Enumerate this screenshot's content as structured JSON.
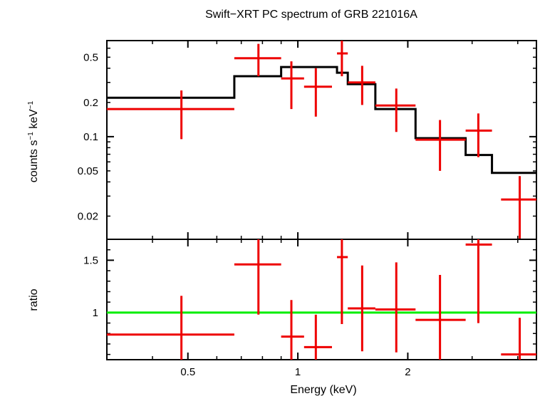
{
  "chart_data": [
    {
      "type": "scatter",
      "title": "Swift−XRT PC spectrum of GRB 221016A",
      "ylabel_main": "counts s",
      "ylabel_exp1": "−1",
      "ylabel_mid": " keV",
      "ylabel_exp2": "−1",
      "y_scale": "log",
      "x_scale": "log",
      "xlim": [
        0.3,
        4.5
      ],
      "ylim": [
        0.0125,
        0.7
      ],
      "ytick_labels": [
        "0.5",
        "0.2",
        "0.1",
        "0.05",
        "0.02"
      ],
      "ytick_values": [
        0.5,
        0.2,
        0.1,
        0.05,
        0.02
      ],
      "colors": {
        "data": "#ee0000",
        "model": "#000000"
      },
      "series": [
        {
          "points": [
            {
              "x": 0.48,
              "xlo": 0.3,
              "xhi": 0.67,
              "y": 0.175,
              "ylo": 0.095,
              "yhi": 0.255
            },
            {
              "x": 0.78,
              "xlo": 0.67,
              "xhi": 0.9,
              "y": 0.49,
              "ylo": 0.34,
              "yhi": 0.655
            },
            {
              "x": 0.96,
              "xlo": 0.9,
              "xhi": 1.04,
              "y": 0.325,
              "ylo": 0.175,
              "yhi": 0.46
            },
            {
              "x": 1.12,
              "xlo": 1.04,
              "xhi": 1.24,
              "y": 0.275,
              "ylo": 0.15,
              "yhi": 0.4
            },
            {
              "x": 1.32,
              "xlo": 1.28,
              "xhi": 1.37,
              "y": 0.54,
              "ylo": 0.34,
              "yhi": 0.72
            },
            {
              "x": 1.5,
              "xlo": 1.37,
              "xhi": 1.63,
              "y": 0.3,
              "ylo": 0.19,
              "yhi": 0.42
            },
            {
              "x": 1.86,
              "xlo": 1.63,
              "xhi": 2.1,
              "y": 0.188,
              "ylo": 0.11,
              "yhi": 0.265
            },
            {
              "x": 2.45,
              "xlo": 2.1,
              "xhi": 2.88,
              "y": 0.094,
              "ylo": 0.05,
              "yhi": 0.14
            },
            {
              "x": 3.12,
              "xlo": 2.88,
              "xhi": 3.4,
              "y": 0.113,
              "ylo": 0.066,
              "yhi": 0.16
            },
            {
              "x": 4.05,
              "xlo": 3.6,
              "xhi": 4.5,
              "y": 0.028,
              "ylo": 0.0125,
              "yhi": 0.045
            }
          ]
        },
        {
          "type": "step",
          "steps": [
            {
              "xlo": 0.3,
              "xhi": 0.67,
              "y": 0.22
            },
            {
              "xlo": 0.67,
              "xhi": 0.9,
              "y": 0.34
            },
            {
              "xlo": 0.9,
              "xhi": 1.28,
              "y": 0.41
            },
            {
              "xlo": 1.28,
              "xhi": 1.37,
              "y": 0.365
            },
            {
              "xlo": 1.37,
              "xhi": 1.63,
              "y": 0.29
            },
            {
              "xlo": 1.63,
              "xhi": 2.1,
              "y": 0.175
            },
            {
              "xlo": 2.1,
              "xhi": 2.88,
              "y": 0.097
            },
            {
              "xlo": 2.88,
              "xhi": 3.4,
              "y": 0.069
            },
            {
              "xlo": 3.4,
              "xhi": 4.5,
              "y": 0.048
            }
          ]
        }
      ]
    },
    {
      "type": "scatter",
      "ylabel": "ratio",
      "xlabel": "Energy (keV)",
      "x_scale": "log",
      "xlim": [
        0.3,
        4.5
      ],
      "ylim": [
        0.55,
        1.7
      ],
      "ytick_labels": [
        "1.5",
        "1"
      ],
      "ytick_values": [
        1.5,
        1
      ],
      "xtick_labels": [
        "0.5",
        "1",
        "2"
      ],
      "xtick_values": [
        0.5,
        1,
        2
      ],
      "reference_line": 1,
      "colors": {
        "data": "#ee0000",
        "reference": "#00ee00"
      },
      "series": [
        {
          "points": [
            {
              "x": 0.48,
              "xlo": 0.3,
              "xhi": 0.67,
              "y": 0.79,
              "ylo": 0.55,
              "yhi": 1.16
            },
            {
              "x": 0.78,
              "xlo": 0.67,
              "xhi": 0.9,
              "y": 1.46,
              "ylo": 0.98,
              "yhi": 1.7
            },
            {
              "x": 0.96,
              "xlo": 0.9,
              "xhi": 1.04,
              "y": 0.77,
              "ylo": 0.55,
              "yhi": 1.12
            },
            {
              "x": 1.12,
              "xlo": 1.04,
              "xhi": 1.24,
              "y": 0.67,
              "ylo": 0.55,
              "yhi": 0.98
            },
            {
              "x": 1.32,
              "xlo": 1.28,
              "xhi": 1.37,
              "y": 1.53,
              "ylo": 0.89,
              "yhi": 1.7
            },
            {
              "x": 1.5,
              "xlo": 1.37,
              "xhi": 1.63,
              "y": 1.04,
              "ylo": 0.63,
              "yhi": 1.45
            },
            {
              "x": 1.86,
              "xlo": 1.63,
              "xhi": 2.1,
              "y": 1.03,
              "ylo": 0.62,
              "yhi": 1.48
            },
            {
              "x": 2.45,
              "xlo": 2.1,
              "xhi": 2.88,
              "y": 0.93,
              "ylo": 0.55,
              "yhi": 1.36
            },
            {
              "x": 3.12,
              "xlo": 2.88,
              "xhi": 3.4,
              "y": 1.65,
              "ylo": 0.9,
              "yhi": 1.7
            },
            {
              "x": 4.05,
              "xlo": 3.6,
              "xhi": 4.5,
              "y": 0.6,
              "ylo": 0.55,
              "yhi": 0.95
            }
          ]
        }
      ]
    }
  ]
}
